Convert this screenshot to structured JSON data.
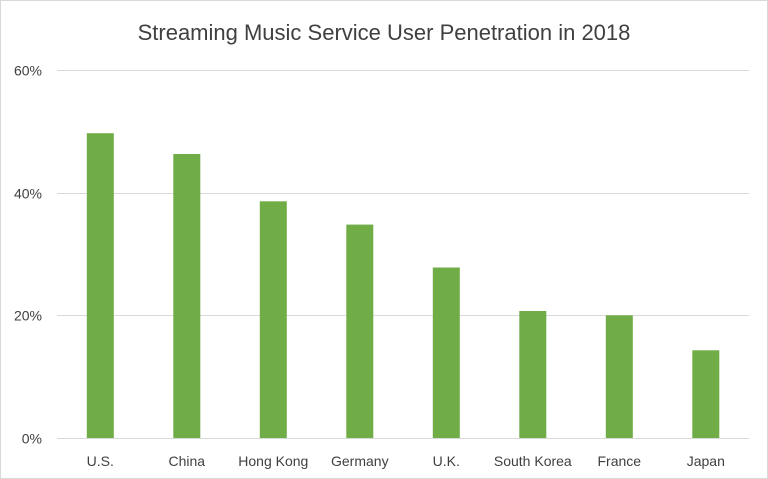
{
  "chart_data": {
    "type": "bar",
    "title": "Streaming Music Service User Penetration in 2018",
    "xlabel": "",
    "ylabel": "",
    "categories": [
      "U.S.",
      "China",
      "Hong Kong",
      "Germany",
      "U.K.",
      "South Korea",
      "France",
      "Japan"
    ],
    "values": [
      0.497,
      0.463,
      0.386,
      0.348,
      0.278,
      0.207,
      0.2,
      0.143
    ],
    "ylim": [
      0,
      0.6
    ],
    "yticks": [
      0,
      0.2,
      0.4,
      0.6
    ],
    "ytick_labels": [
      "0%",
      "20%",
      "40%",
      "60%"
    ],
    "grid": true,
    "legend": "none",
    "colors": {
      "bar": "#70ad47",
      "grid": "#d9d9d9",
      "text": "#404040"
    }
  }
}
